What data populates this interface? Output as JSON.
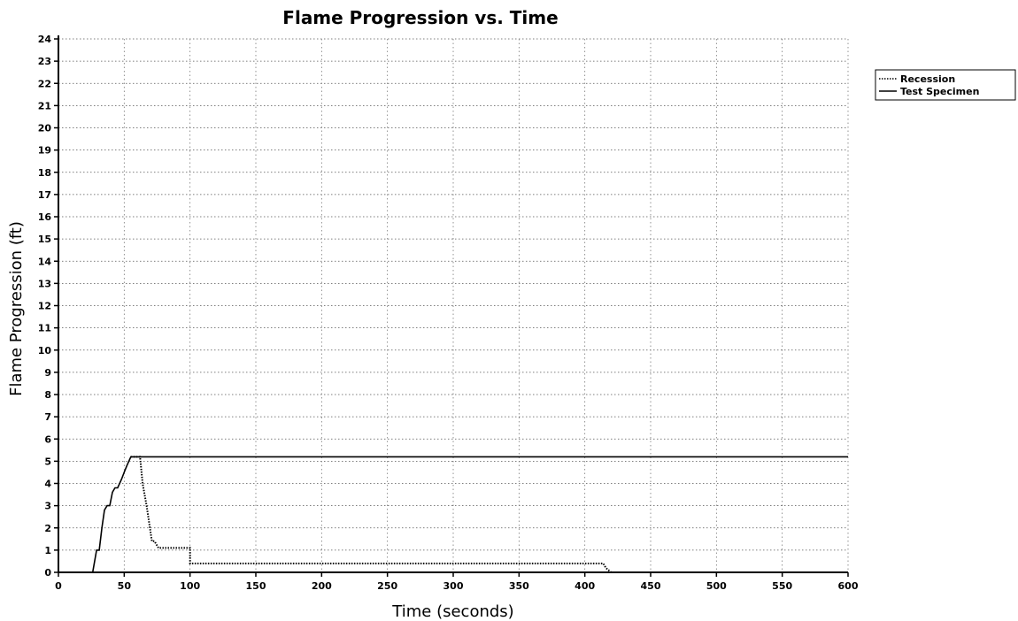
{
  "chart_data": {
    "type": "line",
    "title": "Flame Progression vs. Time",
    "xlabel": "Time (seconds)",
    "ylabel": "Flame Progression (ft)",
    "xlim": [
      0,
      600
    ],
    "ylim": [
      0,
      24
    ],
    "xticks": [
      0,
      50,
      100,
      150,
      200,
      250,
      300,
      350,
      400,
      450,
      500,
      550,
      600
    ],
    "yticks": [
      0,
      1,
      2,
      3,
      4,
      5,
      6,
      7,
      8,
      9,
      10,
      11,
      12,
      13,
      14,
      15,
      16,
      17,
      18,
      19,
      20,
      21,
      22,
      23,
      24
    ],
    "grid": true,
    "legend_position": "top-right",
    "series": [
      {
        "name": "Recession",
        "style": "dotted",
        "color": "#000000",
        "x": [
          55,
          62,
          64,
          67,
          69,
          71,
          73,
          76,
          80,
          100,
          100,
          414,
          416,
          420
        ],
        "y": [
          5.2,
          5.2,
          4.0,
          3.0,
          2.2,
          1.4,
          1.4,
          1.1,
          1.1,
          1.1,
          0.4,
          0.4,
          0.2,
          0
        ]
      },
      {
        "name": "Test Specimen",
        "style": "solid",
        "color": "#000000",
        "x": [
          26,
          29,
          31,
          33,
          35,
          37,
          39,
          41,
          43,
          45,
          48,
          50,
          52,
          55,
          56,
          57,
          600
        ],
        "y": [
          0,
          1.0,
          1.0,
          2.0,
          2.8,
          3.0,
          3.0,
          3.6,
          3.8,
          3.8,
          4.2,
          4.5,
          4.8,
          5.2,
          5.2,
          5.2,
          5.2
        ]
      }
    ]
  }
}
